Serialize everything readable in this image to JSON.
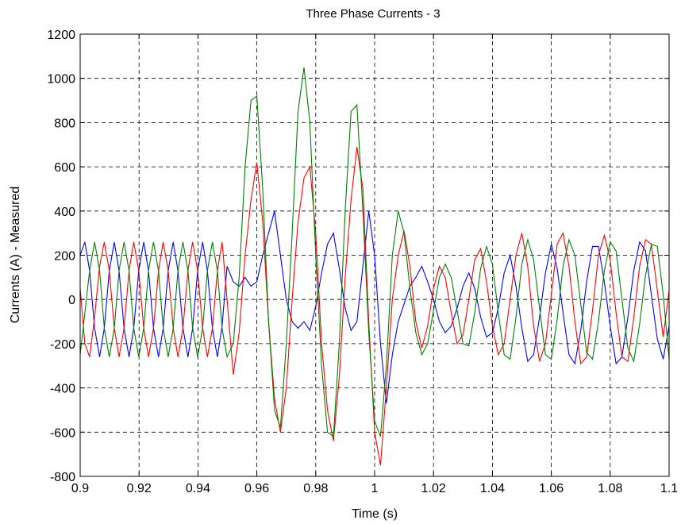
{
  "chart_data": {
    "type": "line",
    "title": "Three Phase Currents - 3",
    "xlabel": "Time (s)",
    "ylabel": "Currents (A) - Measured",
    "xlim": [
      0.9,
      1.1
    ],
    "ylim": [
      -800,
      1200
    ],
    "x_ticks": [
      "0.9",
      "0.92",
      "0.94",
      "0.96",
      "0.98",
      "1",
      "1.02",
      "1.04",
      "1.06",
      "1.08",
      "1.1"
    ],
    "y_ticks": [
      "1200",
      "1000",
      "800",
      "600",
      "400",
      "200",
      "0",
      "-200",
      "-400",
      "-600",
      "-800"
    ],
    "grid": true,
    "legend": "none",
    "series": [
      {
        "color": "#0000ff",
        "x": [
          0.9,
          0.9016,
          0.9032,
          0.9049,
          0.9066,
          0.9082,
          0.9099,
          0.9116,
          0.9132,
          0.9149,
          0.9166,
          0.9182,
          0.9199,
          0.9216,
          0.9232,
          0.9249,
          0.9266,
          0.9282,
          0.9299,
          0.9316,
          0.9332,
          0.9349,
          0.9366,
          0.9382,
          0.9399,
          0.9416,
          0.9432,
          0.9449,
          0.9466,
          0.9482,
          0.9499,
          0.952,
          0.954,
          0.956,
          0.958,
          0.96,
          0.962,
          0.964,
          0.966,
          0.968,
          0.97,
          0.972,
          0.974,
          0.976,
          0.978,
          0.98,
          0.982,
          0.984,
          0.986,
          0.988,
          0.99,
          0.992,
          0.994,
          0.996,
          0.998,
          1.0,
          1.002,
          1.004,
          1.006,
          1.008,
          1.01,
          1.012,
          1.014,
          1.016,
          1.018,
          1.02,
          1.022,
          1.024,
          1.026,
          1.028,
          1.03,
          1.032,
          1.034,
          1.036,
          1.038,
          1.04,
          1.042,
          1.044,
          1.046,
          1.048,
          1.05,
          1.052,
          1.054,
          1.056,
          1.058,
          1.06,
          1.062,
          1.064,
          1.066,
          1.068,
          1.07,
          1.072,
          1.074,
          1.076,
          1.078,
          1.08,
          1.082,
          1.084,
          1.086,
          1.088,
          1.09,
          1.092,
          1.094,
          1.096,
          1.098,
          1.1
        ],
        "y": [
          200,
          260,
          130,
          -130,
          -260,
          -130,
          130,
          260,
          130,
          -130,
          -260,
          -130,
          130,
          260,
          130,
          -130,
          -260,
          -130,
          130,
          260,
          130,
          -130,
          -260,
          -130,
          130,
          260,
          130,
          -130,
          -260,
          -120,
          150,
          80,
          60,
          100,
          60,
          80,
          200,
          300,
          400,
          200,
          0,
          -100,
          -130,
          -100,
          -140,
          -30,
          120,
          250,
          300,
          140,
          -40,
          -140,
          -100,
          150,
          400,
          200,
          -200,
          -470,
          -250,
          -100,
          -20,
          60,
          100,
          150,
          80,
          0,
          -100,
          -150,
          -120,
          -40,
          60,
          120,
          50,
          -80,
          -170,
          -150,
          -40,
          120,
          200,
          60,
          -130,
          -280,
          -250,
          -80,
          120,
          250,
          140,
          -60,
          -250,
          -290,
          -140,
          80,
          240,
          240,
          80,
          -120,
          -290,
          -260,
          -80,
          130,
          260,
          220,
          20,
          -180,
          -270,
          -120
        ]
      },
      {
        "color": "#ff0000",
        "x": [
          0.9,
          0.9016,
          0.9032,
          0.9049,
          0.9066,
          0.9082,
          0.9099,
          0.9116,
          0.9132,
          0.9149,
          0.9166,
          0.9182,
          0.9199,
          0.9216,
          0.9232,
          0.9249,
          0.9266,
          0.9282,
          0.9299,
          0.9316,
          0.9332,
          0.9349,
          0.9366,
          0.9382,
          0.9399,
          0.9416,
          0.9432,
          0.9449,
          0.9466,
          0.9482,
          0.9499,
          0.952,
          0.954,
          0.956,
          0.958,
          0.96,
          0.962,
          0.964,
          0.966,
          0.968,
          0.97,
          0.972,
          0.974,
          0.976,
          0.978,
          0.98,
          0.982,
          0.984,
          0.986,
          0.988,
          0.99,
          0.992,
          0.994,
          0.996,
          0.998,
          1.0,
          1.002,
          1.004,
          1.006,
          1.008,
          1.01,
          1.012,
          1.014,
          1.016,
          1.018,
          1.02,
          1.022,
          1.024,
          1.026,
          1.028,
          1.03,
          1.032,
          1.034,
          1.036,
          1.038,
          1.04,
          1.042,
          1.044,
          1.046,
          1.048,
          1.05,
          1.052,
          1.054,
          1.056,
          1.058,
          1.06,
          1.062,
          1.064,
          1.066,
          1.068,
          1.07,
          1.072,
          1.074,
          1.076,
          1.078,
          1.08,
          1.082,
          1.084,
          1.086,
          1.088,
          1.09,
          1.092,
          1.094,
          1.096,
          1.098,
          1.1
        ],
        "y": [
          50,
          -200,
          -260,
          -80,
          150,
          260,
          130,
          -130,
          -260,
          -130,
          130,
          260,
          130,
          -130,
          -260,
          -130,
          130,
          260,
          130,
          -130,
          -260,
          -130,
          130,
          260,
          130,
          -130,
          -260,
          -130,
          130,
          260,
          0,
          -340,
          -150,
          200,
          450,
          620,
          350,
          -100,
          -450,
          -600,
          -400,
          0,
          350,
          550,
          600,
          300,
          -200,
          -500,
          -640,
          -350,
          100,
          450,
          690,
          500,
          -100,
          -600,
          -750,
          -400,
          0,
          200,
          310,
          150,
          -100,
          -220,
          -120,
          50,
          150,
          100,
          -60,
          -200,
          -160,
          0,
          180,
          230,
          80,
          -120,
          -250,
          -200,
          0,
          200,
          300,
          150,
          -120,
          -280,
          -200,
          20,
          250,
          300,
          150,
          -100,
          -290,
          -260,
          -50,
          200,
          290,
          180,
          -60,
          -260,
          -280,
          -80,
          150,
          270,
          250,
          40,
          -170,
          40
        ]
      },
      {
        "color": "#008000",
        "x": [
          0.9,
          0.9016,
          0.9032,
          0.9049,
          0.9066,
          0.9082,
          0.9099,
          0.9116,
          0.9132,
          0.9149,
          0.9166,
          0.9182,
          0.9199,
          0.9216,
          0.9232,
          0.9249,
          0.9266,
          0.9282,
          0.9299,
          0.9316,
          0.9332,
          0.9349,
          0.9366,
          0.9382,
          0.9399,
          0.9416,
          0.9432,
          0.9449,
          0.9466,
          0.9482,
          0.9499,
          0.952,
          0.954,
          0.956,
          0.958,
          0.96,
          0.962,
          0.964,
          0.966,
          0.968,
          0.97,
          0.972,
          0.974,
          0.976,
          0.978,
          0.98,
          0.982,
          0.984,
          0.986,
          0.988,
          0.99,
          0.992,
          0.994,
          0.996,
          0.998,
          1.0,
          1.002,
          1.004,
          1.006,
          1.008,
          1.01,
          1.012,
          1.014,
          1.016,
          1.018,
          1.02,
          1.022,
          1.024,
          1.026,
          1.028,
          1.03,
          1.032,
          1.034,
          1.036,
          1.038,
          1.04,
          1.042,
          1.044,
          1.046,
          1.048,
          1.05,
          1.052,
          1.054,
          1.056,
          1.058,
          1.06,
          1.062,
          1.064,
          1.066,
          1.068,
          1.07,
          1.072,
          1.074,
          1.076,
          1.078,
          1.08,
          1.082,
          1.084,
          1.086,
          1.088,
          1.09,
          1.092,
          1.094,
          1.096,
          1.098,
          1.1
        ],
        "y": [
          -250,
          -60,
          130,
          260,
          130,
          -130,
          -260,
          -130,
          130,
          260,
          130,
          -130,
          -260,
          -130,
          130,
          260,
          130,
          -130,
          -260,
          -130,
          130,
          260,
          130,
          -130,
          -260,
          -130,
          130,
          260,
          130,
          -130,
          -260,
          -200,
          100,
          600,
          900,
          920,
          500,
          -100,
          -500,
          -580,
          -200,
          300,
          850,
          1050,
          800,
          200,
          -300,
          -600,
          -620,
          -200,
          400,
          850,
          880,
          400,
          -150,
          -550,
          -620,
          -300,
          200,
          400,
          300,
          50,
          -150,
          -250,
          -200,
          -50,
          100,
          160,
          100,
          -50,
          -200,
          -210,
          -60,
          140,
          240,
          160,
          -60,
          -250,
          -270,
          -80,
          160,
          270,
          180,
          -40,
          -250,
          -270,
          -90,
          150,
          270,
          200,
          -20,
          -240,
          -270,
          -100,
          130,
          260,
          220,
          0,
          -220,
          -280,
          -110,
          110,
          250,
          240,
          20,
          -270
        ]
      }
    ]
  }
}
